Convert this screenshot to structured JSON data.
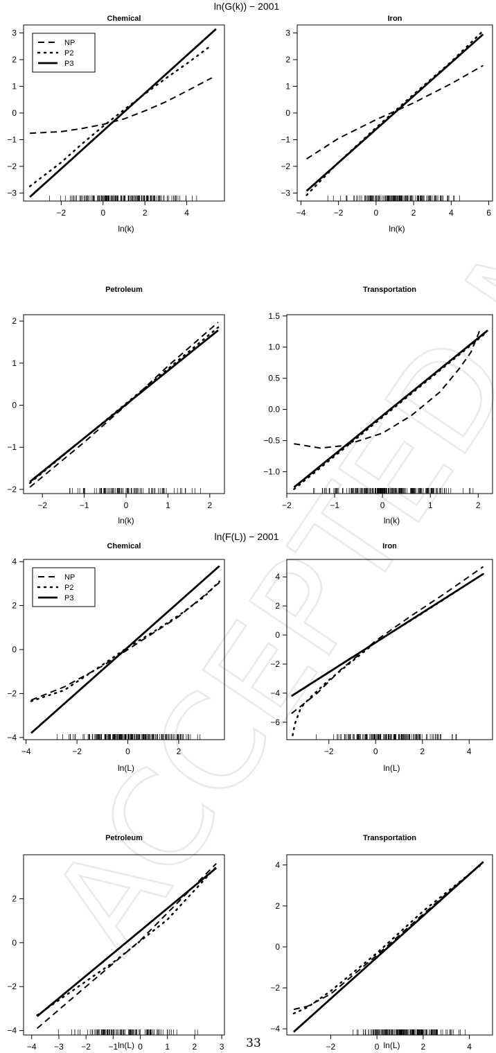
{
  "page": {
    "watermark": "ACCEPTED MANUSCRIPT",
    "page_number": "33"
  },
  "line_styles": [
    {
      "key": "NP",
      "dash": "9,6",
      "width": 2
    },
    {
      "key": "P2",
      "dash": "2,7",
      "width": 2.5
    },
    {
      "key": "P3",
      "dash": "",
      "width": 2.8
    }
  ],
  "groups": [
    {
      "title": "ln(G(k)) − 2001"
    },
    {
      "title": "ln(F(L)) − 2001"
    }
  ],
  "chart_data": [
    {
      "type": "line",
      "title": "Chemical",
      "xlabel": "ln(k)",
      "ylabel": "",
      "xlim": [
        -3.8,
        5.8
      ],
      "ylim": [
        -3.3,
        3.3
      ],
      "xticks": [
        -2,
        0,
        2,
        4
      ],
      "yticks": [
        -3,
        -2,
        -1,
        0,
        1,
        2,
        3
      ],
      "legend": {
        "position": "top-left",
        "entries": [
          "NP",
          "P2",
          "P3"
        ]
      },
      "series": [
        {
          "style": "NP",
          "points": [
            [
              -3.5,
              -0.76
            ],
            [
              -2,
              -0.7
            ],
            [
              -1,
              -0.58
            ],
            [
              0,
              -0.43
            ],
            [
              1,
              -0.22
            ],
            [
              2,
              0.08
            ],
            [
              3,
              0.42
            ],
            [
              4,
              0.82
            ],
            [
              5.2,
              1.32
            ]
          ]
        },
        {
          "style": "P2",
          "points": [
            [
              -3.5,
              -2.75
            ],
            [
              -2,
              -1.85
            ],
            [
              -1,
              -1.15
            ],
            [
              0,
              -0.5
            ],
            [
              1,
              0.12
            ],
            [
              2,
              0.72
            ],
            [
              3,
              1.3
            ],
            [
              4,
              1.85
            ],
            [
              5.2,
              2.55
            ]
          ]
        },
        {
          "style": "P3",
          "points": [
            [
              -3.5,
              -3.15
            ],
            [
              5.4,
              3.15
            ]
          ]
        }
      ],
      "rug": {
        "axis": "x",
        "min": -3.4,
        "max": 5.2,
        "count": 170
      }
    },
    {
      "type": "line",
      "title": "Iron",
      "xlabel": "ln(k)",
      "ylabel": "",
      "xlim": [
        -4.2,
        6.2
      ],
      "ylim": [
        -3.3,
        3.3
      ],
      "xticks": [
        -4,
        -2,
        0,
        2,
        4,
        6
      ],
      "yticks": [
        -3,
        -2,
        -1,
        0,
        1,
        2,
        3
      ],
      "series": [
        {
          "style": "NP",
          "points": [
            [
              -3.7,
              -1.72
            ],
            [
              -2,
              -0.95
            ],
            [
              0,
              -0.25
            ],
            [
              2,
              0.38
            ],
            [
              4,
              1.1
            ],
            [
              5.7,
              1.78
            ]
          ]
        },
        {
          "style": "P2",
          "points": [
            [
              -3.7,
              -3.08
            ],
            [
              -2,
              -1.85
            ],
            [
              0,
              -0.55
            ],
            [
              2,
              0.7
            ],
            [
              4,
              1.92
            ],
            [
              5.7,
              3.08
            ]
          ]
        },
        {
          "style": "P3",
          "points": [
            [
              -3.7,
              -2.92
            ],
            [
              5.7,
              2.95
            ]
          ]
        }
      ],
      "rug": {
        "axis": "x",
        "min": -2.8,
        "max": 5.6,
        "count": 150
      }
    },
    {
      "type": "line",
      "title": "Petroleum",
      "xlabel": "ln(k)",
      "ylabel": "",
      "xlim": [
        -2.45,
        2.35
      ],
      "ylim": [
        -2.1,
        2.15
      ],
      "xticks": [
        -2,
        -1,
        0,
        1,
        2
      ],
      "yticks": [
        -2,
        -1,
        0,
        1,
        2
      ],
      "series": [
        {
          "style": "NP",
          "points": [
            [
              -2.3,
              -1.95
            ],
            [
              -1,
              -0.88
            ],
            [
              0,
              0.0
            ],
            [
              1,
              0.93
            ],
            [
              2.2,
              1.97
            ]
          ]
        },
        {
          "style": "P2",
          "points": [
            [
              -2.3,
              -1.85
            ],
            [
              2.2,
              1.85
            ]
          ]
        },
        {
          "style": "P3",
          "points": [
            [
              -2.3,
              -1.82
            ],
            [
              2.2,
              1.78
            ]
          ]
        }
      ],
      "rug": {
        "axis": "x",
        "min": -2.3,
        "max": 2.2,
        "count": 90
      }
    },
    {
      "type": "line",
      "title": "Transportation",
      "xlabel": "ln(k)",
      "ylabel": "",
      "xlim": [
        -2.0,
        2.3
      ],
      "ylim": [
        -1.35,
        1.52
      ],
      "xticks": [
        -2,
        -1,
        0,
        1,
        2
      ],
      "yticks": [
        -1.0,
        -0.5,
        0.0,
        0.5,
        1.0,
        1.5
      ],
      "series": [
        {
          "style": "NP",
          "points": [
            [
              -1.85,
              -0.55
            ],
            [
              -1.3,
              -0.62
            ],
            [
              -0.8,
              -0.58
            ],
            [
              0,
              -0.38
            ],
            [
              0.6,
              -0.1
            ],
            [
              1.2,
              0.28
            ],
            [
              1.6,
              0.65
            ],
            [
              1.85,
              0.92
            ],
            [
              2.05,
              1.3
            ]
          ]
        },
        {
          "style": "P2",
          "points": [
            [
              -1.85,
              -1.28
            ],
            [
              2.15,
              1.22
            ]
          ]
        },
        {
          "style": "P3",
          "points": [
            [
              -1.85,
              -1.25
            ],
            [
              2.2,
              1.27
            ]
          ]
        }
      ],
      "rug": {
        "axis": "x",
        "min": -1.9,
        "max": 2.25,
        "count": 220
      }
    },
    {
      "type": "line",
      "title": "Chemical",
      "xlabel": "ln(L)",
      "ylabel": "",
      "xlim": [
        -4.1,
        3.8
      ],
      "ylim": [
        -4.1,
        4.1
      ],
      "xticks": [
        -4,
        -2,
        0,
        2
      ],
      "yticks": [
        -4,
        -2,
        0,
        2,
        4
      ],
      "legend": {
        "position": "top-left",
        "entries": [
          "NP",
          "P2",
          "P3"
        ]
      },
      "series": [
        {
          "style": "NP",
          "points": [
            [
              -3.8,
              -2.3
            ],
            [
              -2.5,
              -1.7
            ],
            [
              -1,
              -0.75
            ],
            [
              0,
              0.0
            ],
            [
              1,
              0.75
            ],
            [
              2,
              1.5
            ],
            [
              3,
              2.45
            ],
            [
              3.6,
              3.05
            ]
          ]
        },
        {
          "style": "P2",
          "points": [
            [
              -3.8,
              -2.35
            ],
            [
              -2.5,
              -1.85
            ],
            [
              -1,
              -0.7
            ],
            [
              0,
              0.1
            ],
            [
              1,
              0.8
            ],
            [
              2,
              1.55
            ],
            [
              3,
              2.4
            ],
            [
              3.6,
              3.1
            ]
          ]
        },
        {
          "style": "P3",
          "points": [
            [
              -3.8,
              -3.8
            ],
            [
              3.6,
              3.8
            ]
          ]
        }
      ],
      "rug": {
        "axis": "x",
        "min": -3.5,
        "max": 3.6,
        "count": 200
      }
    },
    {
      "type": "line",
      "title": "Iron",
      "xlabel": "ln(L)",
      "ylabel": "",
      "xlim": [
        -3.8,
        5.0
      ],
      "ylim": [
        -7.2,
        5.2
      ],
      "xticks": [
        -2,
        0,
        2,
        4
      ],
      "yticks": [
        -6,
        -4,
        -2,
        0,
        2,
        4
      ],
      "series": [
        {
          "style": "NP",
          "points": [
            [
              -3.6,
              -5.4
            ],
            [
              -2.5,
              -4.0
            ],
            [
              -1.5,
              -2.4
            ],
            [
              0,
              -0.4
            ],
            [
              1.5,
              1.3
            ],
            [
              3,
              2.9
            ],
            [
              4.6,
              4.7
            ]
          ]
        },
        {
          "style": "P2",
          "points": [
            [
              -3.55,
              -6.9
            ],
            [
              -3.45,
              -6.1
            ],
            [
              -3.2,
              -5.0
            ],
            [
              -2.8,
              -4.3
            ],
            [
              -2,
              -3.1
            ],
            [
              0,
              -0.5
            ],
            [
              2,
              1.5
            ],
            [
              4.6,
              4.2
            ]
          ]
        },
        {
          "style": "P3",
          "points": [
            [
              -3.6,
              -4.2
            ],
            [
              4.6,
              4.2
            ]
          ]
        }
      ],
      "rug": {
        "axis": "x",
        "min": -3.0,
        "max": 4.6,
        "count": 170
      }
    },
    {
      "type": "line",
      "title": "Petroleum",
      "xlabel": "ln(L)",
      "ylabel": "",
      "xlim": [
        -4.3,
        3.1
      ],
      "ylim": [
        -4.2,
        4.0
      ],
      "xticks": [
        -4,
        -3,
        -2,
        -1,
        0,
        1,
        2,
        3
      ],
      "yticks": [
        -4,
        -2,
        0,
        2
      ],
      "series": [
        {
          "style": "NP",
          "points": [
            [
              -3.8,
              -3.9
            ],
            [
              -2,
              -2.0
            ],
            [
              0,
              0.1
            ],
            [
              2,
              2.6
            ],
            [
              2.8,
              3.6
            ]
          ]
        },
        {
          "style": "P2",
          "points": [
            [
              -3.8,
              -3.3
            ],
            [
              -1,
              -0.9
            ],
            [
              1,
              1.05
            ],
            [
              2.8,
              3.45
            ]
          ]
        },
        {
          "style": "P3",
          "points": [
            [
              -3.8,
              -3.35
            ],
            [
              2.8,
              3.4
            ]
          ]
        }
      ],
      "rug": {
        "axis": "x",
        "min": -3.7,
        "max": 2.7,
        "count": 110
      }
    },
    {
      "type": "line",
      "title": "Transportation",
      "xlabel": "ln(L)",
      "ylabel": "",
      "xlim": [
        -3.9,
        5.0
      ],
      "ylim": [
        -4.3,
        4.5
      ],
      "xticks": [
        -2,
        0,
        2,
        4
      ],
      "yticks": [
        -4,
        -2,
        0,
        2,
        4
      ],
      "series": [
        {
          "style": "NP",
          "points": [
            [
              -3.6,
              -3.05
            ],
            [
              -3,
              -2.9
            ],
            [
              -2,
              -2.3
            ],
            [
              0,
              -0.4
            ],
            [
              2,
              1.6
            ],
            [
              4.6,
              4.15
            ]
          ]
        },
        {
          "style": "P2",
          "points": [
            [
              -3.6,
              -3.25
            ],
            [
              -3,
              -2.95
            ],
            [
              -2,
              -2.15
            ],
            [
              0,
              -0.3
            ],
            [
              2,
              1.75
            ],
            [
              4.6,
              4.1
            ]
          ]
        },
        {
          "style": "P3",
          "points": [
            [
              -3.6,
              -4.15
            ],
            [
              4.6,
              4.15
            ]
          ]
        }
      ],
      "rug": {
        "axis": "x",
        "min": -1.8,
        "max": 4.3,
        "count": 180
      }
    }
  ]
}
